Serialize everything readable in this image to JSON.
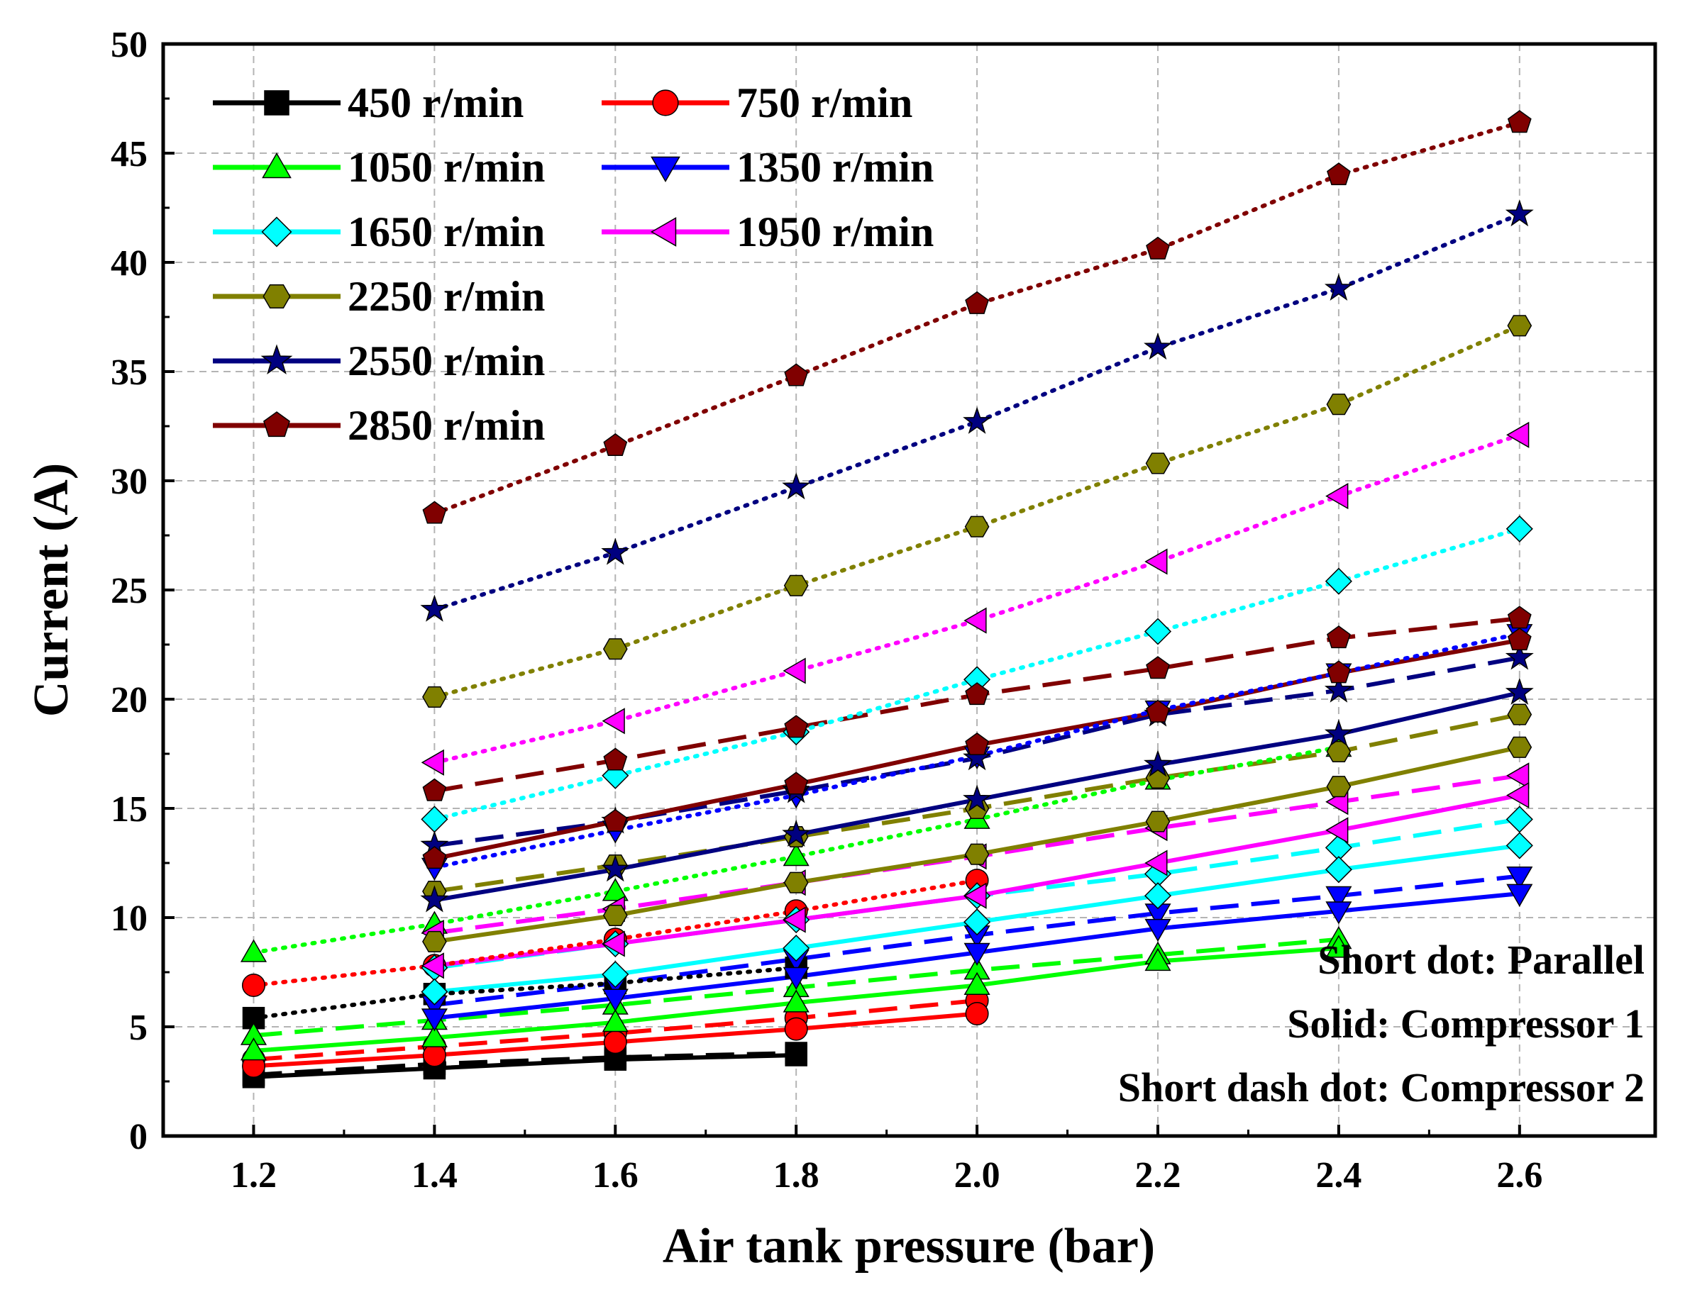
{
  "chart_data": {
    "type": "line",
    "xlabel": "Air tank pressure (bar)",
    "ylabel": "Current (A)",
    "xlim": [
      1.1,
      2.75
    ],
    "ylim": [
      0,
      50
    ],
    "x_ticks": [
      "1.2",
      "1.4",
      "1.6",
      "1.8",
      "2.0",
      "2.2",
      "2.4",
      "2.6"
    ],
    "y_ticks": [
      "0",
      "5",
      "10",
      "15",
      "20",
      "25",
      "30",
      "35",
      "40",
      "45",
      "50"
    ],
    "grid": true,
    "legend_position": "top-left",
    "line_styles": [
      {
        "key": "parallel",
        "label": "Short dot: Parallel"
      },
      {
        "key": "comp1",
        "label": "Solid: Compressor 1"
      },
      {
        "key": "comp2",
        "label": "Short dash dot: Compressor 2"
      }
    ],
    "series": [
      {
        "name": "450 r/min",
        "color": "#000000",
        "marker": "square",
        "x": [
          1.2,
          1.4,
          1.6,
          1.8
        ],
        "parallel": [
          5.4,
          6.5,
          7.0,
          7.7
        ],
        "comp1": [
          2.7,
          3.1,
          3.5,
          3.7
        ],
        "comp2": [
          2.8,
          3.3,
          3.6,
          3.8
        ]
      },
      {
        "name": "750 r/min",
        "color": "#ff0000",
        "marker": "circle",
        "x": [
          1.2,
          1.4,
          1.6,
          1.8,
          2.0
        ],
        "parallel": [
          6.9,
          7.8,
          9.0,
          10.3,
          11.7
        ],
        "comp1": [
          3.2,
          3.7,
          4.3,
          4.9,
          5.6
        ],
        "comp2": [
          3.5,
          4.1,
          4.7,
          5.4,
          6.2
        ]
      },
      {
        "name": "1050 r/min",
        "color": "#00ff00",
        "marker": "triangle-up",
        "x": [
          1.2,
          1.4,
          1.6,
          1.8,
          2.0,
          2.2,
          2.4
        ],
        "parallel": [
          8.4,
          9.7,
          11.2,
          12.8,
          14.5,
          16.3,
          17.8
        ],
        "comp1": [
          3.9,
          4.5,
          5.2,
          6.1,
          6.9,
          8.0,
          8.6
        ],
        "comp2": [
          4.6,
          5.3,
          6.0,
          6.8,
          7.6,
          8.3,
          9.0
        ]
      },
      {
        "name": "1350 r/min",
        "color": "#0000ff",
        "marker": "triangle-down",
        "x": [
          1.4,
          1.6,
          1.8,
          2.0,
          2.2,
          2.4,
          2.6
        ],
        "parallel": [
          12.3,
          14.0,
          15.6,
          17.4,
          19.5,
          21.2,
          23.0
        ],
        "comp1": [
          5.4,
          6.3,
          7.3,
          8.4,
          9.5,
          10.3,
          11.1
        ],
        "comp2": [
          6.0,
          7.0,
          8.1,
          9.2,
          10.2,
          11.0,
          11.9
        ]
      },
      {
        "name": "1650 r/min",
        "color": "#00ffff",
        "marker": "diamond",
        "x": [
          1.4,
          1.6,
          1.8,
          2.0,
          2.2,
          2.4,
          2.6
        ],
        "parallel": [
          14.5,
          16.5,
          18.5,
          20.9,
          23.1,
          25.4,
          27.8
        ],
        "comp1": [
          6.6,
          7.4,
          8.6,
          9.8,
          11.0,
          12.2,
          13.3
        ],
        "comp2": [
          7.7,
          8.8,
          9.9,
          11.0,
          12.0,
          13.2,
          14.5
        ]
      },
      {
        "name": "1950 r/min",
        "color": "#ff00ff",
        "marker": "triangle-left",
        "x": [
          1.4,
          1.6,
          1.8,
          2.0,
          2.2,
          2.4,
          2.6
        ],
        "parallel": [
          17.1,
          19.0,
          21.3,
          23.6,
          26.3,
          29.3,
          32.1
        ],
        "comp1": [
          7.8,
          8.8,
          9.9,
          11.0,
          12.5,
          14.0,
          15.6
        ],
        "comp2": [
          9.3,
          10.4,
          11.6,
          12.8,
          14.1,
          15.3,
          16.5
        ]
      },
      {
        "name": "2250 r/min",
        "color": "#808000",
        "marker": "hexagon",
        "x": [
          1.4,
          1.6,
          1.8,
          2.0,
          2.2,
          2.4,
          2.6
        ],
        "parallel": [
          20.1,
          22.3,
          25.2,
          27.9,
          30.8,
          33.5,
          37.1
        ],
        "comp1": [
          8.9,
          10.1,
          11.6,
          12.9,
          14.4,
          16.0,
          17.8
        ],
        "comp2": [
          11.2,
          12.4,
          13.7,
          15.0,
          16.4,
          17.6,
          19.3
        ]
      },
      {
        "name": "2550 r/min",
        "color": "#000080",
        "marker": "star",
        "x": [
          1.4,
          1.6,
          1.8,
          2.0,
          2.2,
          2.4,
          2.6
        ],
        "parallel": [
          24.1,
          26.7,
          29.7,
          32.7,
          36.1,
          38.8,
          42.2
        ],
        "comp1": [
          10.8,
          12.2,
          13.8,
          15.4,
          17.0,
          18.4,
          20.3
        ],
        "comp2": [
          13.3,
          14.4,
          15.8,
          17.3,
          19.3,
          20.4,
          21.9
        ]
      },
      {
        "name": "2850 r/min",
        "color": "#800000",
        "marker": "pentagon",
        "x": [
          1.4,
          1.6,
          1.8,
          2.0,
          2.2,
          2.4,
          2.6
        ],
        "parallel": [
          28.5,
          31.6,
          34.8,
          38.1,
          40.6,
          44.0,
          46.4
        ],
        "comp1": [
          12.7,
          14.4,
          16.1,
          17.9,
          19.4,
          21.2,
          22.7
        ],
        "comp2": [
          15.8,
          17.2,
          18.7,
          20.2,
          21.4,
          22.8,
          23.7
        ]
      }
    ]
  }
}
